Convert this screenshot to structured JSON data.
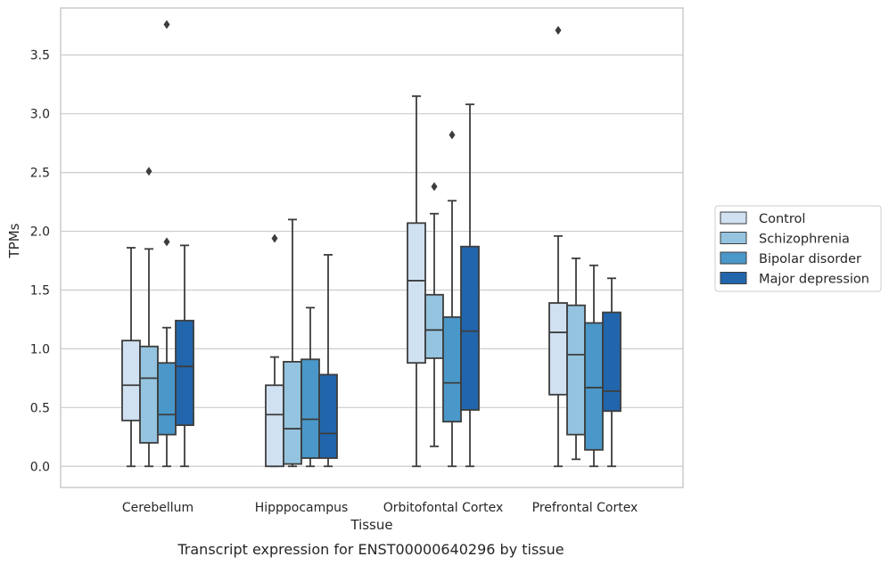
{
  "chart_data": {
    "type": "box",
    "xlabel": "Tissue",
    "ylabel": "TPMs",
    "caption": "Transcript expression for ENST00000640296 by tissue",
    "ylim": [
      -0.18,
      3.9
    ],
    "yticks": [
      0.0,
      0.5,
      1.0,
      1.5,
      2.0,
      2.5,
      3.0,
      3.5
    ],
    "ytick_labels": [
      "0.0",
      "0.5",
      "1.0",
      "1.5",
      "2.0",
      "2.5",
      "3.0",
      "3.5"
    ],
    "grid": "horizontal",
    "legend_position": "right",
    "categories": [
      "Cerebellum",
      "Hipppocampus",
      "Orbitofontal Cortex",
      "Prefrontal Cortex"
    ],
    "series": [
      {
        "name": "Control",
        "color": "#d0e1f2",
        "boxes": [
          {
            "whisker_low": 0.0,
            "q1": 0.39,
            "median": 0.69,
            "q3": 1.07,
            "whisker_high": 1.86,
            "outliers": []
          },
          {
            "whisker_low": 0.0,
            "q1": 0.0,
            "median": 0.44,
            "q3": 0.69,
            "whisker_high": 0.93,
            "outliers": [
              1.94
            ]
          },
          {
            "whisker_low": 0.0,
            "q1": 0.88,
            "median": 1.58,
            "q3": 2.07,
            "whisker_high": 3.15,
            "outliers": []
          },
          {
            "whisker_low": 0.0,
            "q1": 0.61,
            "median": 1.14,
            "q3": 1.39,
            "whisker_high": 1.96,
            "outliers": [
              3.71
            ]
          }
        ]
      },
      {
        "name": "Schizophrenia",
        "color": "#94c4df",
        "boxes": [
          {
            "whisker_low": 0.0,
            "q1": 0.2,
            "median": 0.75,
            "q3": 1.02,
            "whisker_high": 1.85,
            "outliers": [
              2.51
            ]
          },
          {
            "whisker_low": 0.0,
            "q1": 0.02,
            "median": 0.32,
            "q3": 0.89,
            "whisker_high": 2.1,
            "outliers": []
          },
          {
            "whisker_low": 0.17,
            "q1": 0.92,
            "median": 1.16,
            "q3": 1.46,
            "whisker_high": 2.15,
            "outliers": [
              2.38
            ]
          },
          {
            "whisker_low": 0.06,
            "q1": 0.27,
            "median": 0.95,
            "q3": 1.37,
            "whisker_high": 1.77,
            "outliers": []
          }
        ]
      },
      {
        "name": "Bipolar disorder",
        "color": "#4a98c9",
        "boxes": [
          {
            "whisker_low": 0.0,
            "q1": 0.27,
            "median": 0.44,
            "q3": 0.88,
            "whisker_high": 1.18,
            "outliers": [
              1.91,
              3.76
            ]
          },
          {
            "whisker_low": 0.0,
            "q1": 0.07,
            "median": 0.4,
            "q3": 0.91,
            "whisker_high": 1.35,
            "outliers": []
          },
          {
            "whisker_low": 0.0,
            "q1": 0.38,
            "median": 0.71,
            "q3": 1.27,
            "whisker_high": 2.26,
            "outliers": [
              2.82
            ]
          },
          {
            "whisker_low": 0.0,
            "q1": 0.14,
            "median": 0.67,
            "q3": 1.22,
            "whisker_high": 1.71,
            "outliers": []
          }
        ]
      },
      {
        "name": "Major depression",
        "color": "#2166ac",
        "boxes": [
          {
            "whisker_low": 0.0,
            "q1": 0.35,
            "median": 0.85,
            "q3": 1.24,
            "whisker_high": 1.88,
            "outliers": []
          },
          {
            "whisker_low": 0.0,
            "q1": 0.07,
            "median": 0.28,
            "q3": 0.78,
            "whisker_high": 1.8,
            "outliers": []
          },
          {
            "whisker_low": 0.0,
            "q1": 0.48,
            "median": 1.15,
            "q3": 1.87,
            "whisker_high": 3.08,
            "outliers": []
          },
          {
            "whisker_low": 0.0,
            "q1": 0.47,
            "median": 0.64,
            "q3": 1.31,
            "whisker_high": 1.6,
            "outliers": []
          }
        ]
      }
    ]
  }
}
